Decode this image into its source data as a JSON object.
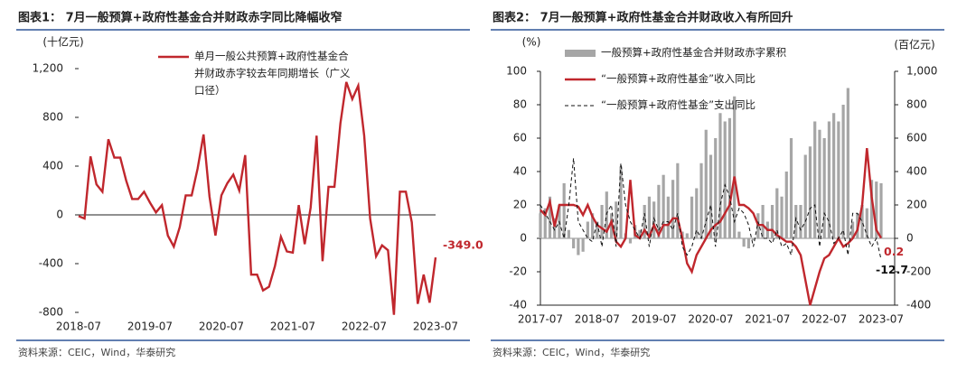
{
  "chart_data": [
    {
      "type": "line",
      "title": "图表1： 7月一般预算+政府性基金合并财政赤字同比降幅收窄",
      "source": "资料来源：CEIC，Wind，华泰研究",
      "y_label": "(十亿元)",
      "x": [
        "2018-07",
        "2018-08",
        "2018-09",
        "2018-10",
        "2018-11",
        "2018-12",
        "2019-01",
        "2019-02",
        "2019-03",
        "2019-04",
        "2019-05",
        "2019-06",
        "2019-07",
        "2019-08",
        "2019-09",
        "2019-10",
        "2019-11",
        "2019-12",
        "2020-01",
        "2020-02",
        "2020-03",
        "2020-04",
        "2020-05",
        "2020-06",
        "2020-07",
        "2020-08",
        "2020-09",
        "2020-10",
        "2020-11",
        "2020-12",
        "2021-01",
        "2021-02",
        "2021-03",
        "2021-04",
        "2021-05",
        "2021-06",
        "2021-07",
        "2021-08",
        "2021-09",
        "2021-10",
        "2021-11",
        "2021-12",
        "2022-01",
        "2022-02",
        "2022-03",
        "2022-04",
        "2022-05",
        "2022-06",
        "2022-07",
        "2022-08",
        "2022-09",
        "2022-10",
        "2022-11",
        "2022-12",
        "2023-01",
        "2023-02",
        "2023-03",
        "2023-04",
        "2023-05",
        "2023-06",
        "2023-07"
      ],
      "xticks": [
        "2018-07",
        "2019-07",
        "2020-07",
        "2021-07",
        "2022-07",
        "2023-07"
      ],
      "series": [
        {
          "name": "单月一般公共预算+政府性基金合并财政赤字较去年同期增长（广义口径）",
          "color": "#c0272d",
          "values": [
            -10,
            -30,
            480,
            250,
            190,
            620,
            470,
            470,
            280,
            130,
            130,
            190,
            100,
            20,
            80,
            -170,
            -260,
            -100,
            160,
            160,
            380,
            660,
            150,
            -170,
            160,
            260,
            330,
            200,
            490,
            -490,
            -490,
            -620,
            -590,
            -420,
            -180,
            -300,
            -310,
            80,
            -240,
            60,
            650,
            -380,
            230,
            230,
            750,
            1090,
            950,
            1060,
            650,
            -30,
            -340,
            -250,
            -290,
            -820,
            190,
            190,
            -60,
            -730,
            -490,
            -720,
            -349
          ],
          "value_labels": [
            null,
            null,
            null,
            null,
            null,
            null,
            null,
            null,
            null,
            null,
            null,
            null,
            null,
            null,
            null,
            null,
            null,
            null,
            null,
            null,
            null,
            null,
            null,
            null,
            null,
            null,
            null,
            null,
            null,
            null,
            null,
            null,
            null,
            null,
            null,
            null,
            null,
            null,
            null,
            null,
            null,
            null,
            null,
            null,
            null,
            null,
            null,
            null,
            null,
            null,
            null,
            null,
            null,
            null,
            null,
            null,
            null,
            null,
            null,
            null,
            "-349.0"
          ]
        }
      ],
      "ylim": [
        -800,
        1200
      ],
      "yticks": [
        -800,
        -400,
        0,
        400,
        800,
        {
          "value": 1200,
          "label": "1,200"
        }
      ]
    },
    {
      "type": "combo",
      "title": "图表2： 7月一般预算+政府性基金合并财政收入有所回升",
      "source": "资料来源：CEIC，Wind，华泰研究",
      "y_label": "(%)",
      "y2_label": "(百亿元)",
      "x": [
        "2017-07",
        "2017-08",
        "2017-09",
        "2017-10",
        "2017-11",
        "2017-12",
        "2018-01",
        "2018-02",
        "2018-03",
        "2018-04",
        "2018-05",
        "2018-06",
        "2018-07",
        "2018-08",
        "2018-09",
        "2018-10",
        "2018-11",
        "2018-12",
        "2019-01",
        "2019-02",
        "2019-03",
        "2019-04",
        "2019-05",
        "2019-06",
        "2019-07",
        "2019-08",
        "2019-09",
        "2019-10",
        "2019-11",
        "2019-12",
        "2020-01",
        "2020-02",
        "2020-03",
        "2020-04",
        "2020-05",
        "2020-06",
        "2020-07",
        "2020-08",
        "2020-09",
        "2020-10",
        "2020-11",
        "2020-12",
        "2021-01",
        "2021-02",
        "2021-03",
        "2021-04",
        "2021-05",
        "2021-06",
        "2021-07",
        "2021-08",
        "2021-09",
        "2021-10",
        "2021-11",
        "2021-12",
        "2022-01",
        "2022-02",
        "2022-03",
        "2022-04",
        "2022-05",
        "2022-06",
        "2022-07",
        "2022-08",
        "2022-09",
        "2022-10",
        "2022-11",
        "2022-12",
        "2023-01",
        "2023-02",
        "2023-03",
        "2023-04",
        "2023-05",
        "2023-06",
        "2023-07"
      ],
      "xticks": [
        "2017-07",
        "2018-07",
        "2019-07",
        "2020-07",
        "2021-07",
        "2022-07",
        "2023-07"
      ],
      "series": [
        {
          "name": "一般预算+政府性基金合并财政赤字累积",
          "type": "bar",
          "axis": "y2",
          "color": "#a6a6a6",
          "values": [
            150,
            180,
            250,
            120,
            200,
            330,
            50,
            -60,
            -100,
            -80,
            100,
            150,
            100,
            200,
            280,
            150,
            220,
            430,
            30,
            -30,
            80,
            50,
            200,
            250,
            220,
            320,
            380,
            250,
            350,
            450,
            40,
            30,
            250,
            300,
            450,
            650,
            500,
            600,
            750,
            700,
            720,
            850,
            40,
            -50,
            -60,
            -10,
            150,
            200,
            100,
            200,
            300,
            250,
            400,
            600,
            200,
            200,
            500,
            550,
            700,
            650,
            600,
            700,
            750,
            700,
            800,
            900,
            100,
            150,
            200,
            180,
            350,
            340,
            330
          ]
        },
        {
          "name": "“一般预算+政府性基金”收入同比",
          "type": "line",
          "color": "#c0272d",
          "values": [
            17,
            14,
            22,
            7,
            20,
            20,
            20,
            20,
            19,
            14,
            20,
            13,
            8,
            6,
            4,
            10,
            -2,
            -5,
            0,
            35,
            2,
            0,
            5,
            1,
            8,
            2,
            8,
            8,
            12,
            12,
            0,
            -15,
            -20,
            -10,
            -5,
            0,
            5,
            8,
            10,
            15,
            20,
            37,
            20,
            20,
            18,
            15,
            8,
            8,
            5,
            5,
            2,
            0,
            -2,
            -2,
            -5,
            -10,
            -25,
            -40,
            -30,
            -20,
            -12,
            -10,
            -5,
            0,
            -5,
            -3,
            0,
            5,
            20,
            54,
            25,
            5,
            0.2
          ]
        },
        {
          "name": "“一般预算+政府性基金”支出同比",
          "type": "line",
          "dash": true,
          "color": "#111111",
          "values": [
            20,
            15,
            10,
            5,
            10,
            0,
            20,
            48,
            10,
            5,
            0,
            -2,
            10,
            -5,
            15,
            20,
            -5,
            45,
            20,
            10,
            5,
            0,
            15,
            -5,
            12,
            5,
            10,
            10,
            5,
            15,
            -5,
            -10,
            -5,
            5,
            0,
            10,
            20,
            -5,
            20,
            32,
            25,
            10,
            18,
            15,
            8,
            -5,
            10,
            0,
            0,
            -3,
            5,
            -5,
            -3,
            -10,
            12,
            5,
            10,
            18,
            20,
            -5,
            15,
            10,
            -3,
            0,
            5,
            -10,
            15,
            15,
            10,
            2,
            -5,
            0,
            -12.7
          ]
        }
      ],
      "ylim": [
        -40,
        100
      ],
      "yticks": [
        -40,
        -20,
        0,
        20,
        40,
        60,
        80,
        100
      ],
      "y2lim": [
        -400,
        1000
      ],
      "y2ticks": [
        -400,
        -200,
        0,
        200,
        400,
        600,
        800,
        {
          "value": 1000,
          "label": "1,000"
        }
      ]
    }
  ]
}
